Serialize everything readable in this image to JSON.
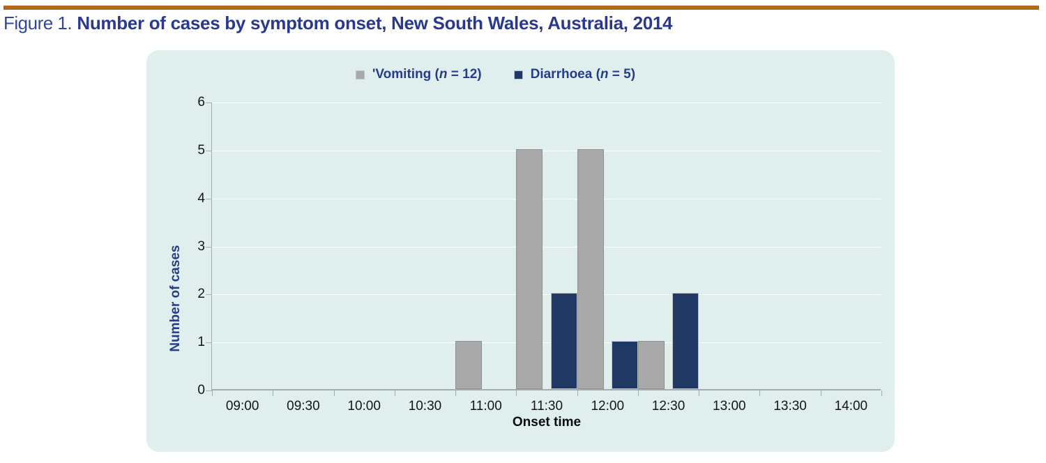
{
  "figure": {
    "label": "Figure 1.",
    "title": "Number of cases by symptom onset, New South Wales, Australia, 2014"
  },
  "legend": {
    "vomiting": {
      "pre": "'Vomiting (",
      "n": "n",
      "post": " = 12)"
    },
    "diarrhoea": {
      "pre": "Diarrhoea (",
      "n": "n",
      "post": " = 5)"
    }
  },
  "axes": {
    "y_title": "Number of cases",
    "x_title": "Onset time"
  },
  "colors": {
    "rule_orange": "#b4661c",
    "title_blue": "#28398f",
    "panel_background": "#e0efed",
    "vomiting_bar": "#a9a9a9",
    "diarrhoea_bar": "#1f3864",
    "axis_gray": "#a3adab"
  },
  "chart_data": {
    "type": "bar",
    "title": "Number of cases by symptom onset, New South Wales, Australia, 2014",
    "categories": [
      "09:00",
      "09:30",
      "10:00",
      "10:30",
      "11:00",
      "11:30",
      "12:00",
      "12:30",
      "13:00",
      "13:30",
      "14:00"
    ],
    "series": [
      {
        "name": "Vomiting (n = 12)",
        "color": "#a9a9a9",
        "border": "#8f8f8f",
        "values": [
          0,
          0,
          0,
          0,
          1,
          5,
          5,
          1,
          0,
          0,
          0
        ]
      },
      {
        "name": "Diarrhoea (n = 5)",
        "color": "#1f3864",
        "border": "#bac7c5",
        "values": [
          0,
          0,
          0,
          0,
          0,
          2,
          1,
          2,
          0,
          0,
          0
        ]
      }
    ],
    "xlabel": "Onset time",
    "ylabel": "Number of cases",
    "ylim": [
      0,
      6
    ],
    "y_ticks": [
      0,
      1,
      2,
      3,
      4,
      5,
      6
    ],
    "grid": true,
    "legend_position": "top-center"
  }
}
